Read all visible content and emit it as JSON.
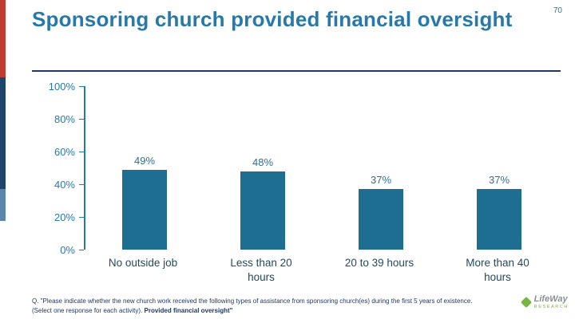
{
  "slide": {
    "page_number": "70",
    "title": "Sponsoring church provided financial oversight",
    "footnote_q": "Q. \"Please indicate whether the new church work received the following types of assistance from sponsoring church(es) during the first 5 years of existence. (Select one response for each activity). ",
    "footnote_bold": "Provided financial oversight\"",
    "logo": {
      "name": "LifeWay",
      "sub": "RESEARCH"
    }
  },
  "colors": {
    "title": "#2679a9",
    "bar": "#1e6e91",
    "underline": "#1f3864",
    "accent_red": "#c13b33",
    "accent_navy": "#20456b",
    "accent_blue": "#5b87ad",
    "logo_green": "#79b541"
  },
  "chart_data": {
    "type": "bar",
    "title": "Sponsoring church provided financial oversight",
    "categories": [
      "No outside job",
      "Less than 20 hours",
      "20 to 39 hours",
      "More than 40 hours"
    ],
    "values": [
      49,
      48,
      37,
      37
    ],
    "value_labels": [
      "49%",
      "48%",
      "37%",
      "37%"
    ],
    "xlabel": "",
    "ylabel": "",
    "ylim": [
      0,
      100
    ],
    "yticks": [
      "100%",
      "80%",
      "60%",
      "40%",
      "20%",
      "0%"
    ],
    "grid": false,
    "legend": false
  }
}
